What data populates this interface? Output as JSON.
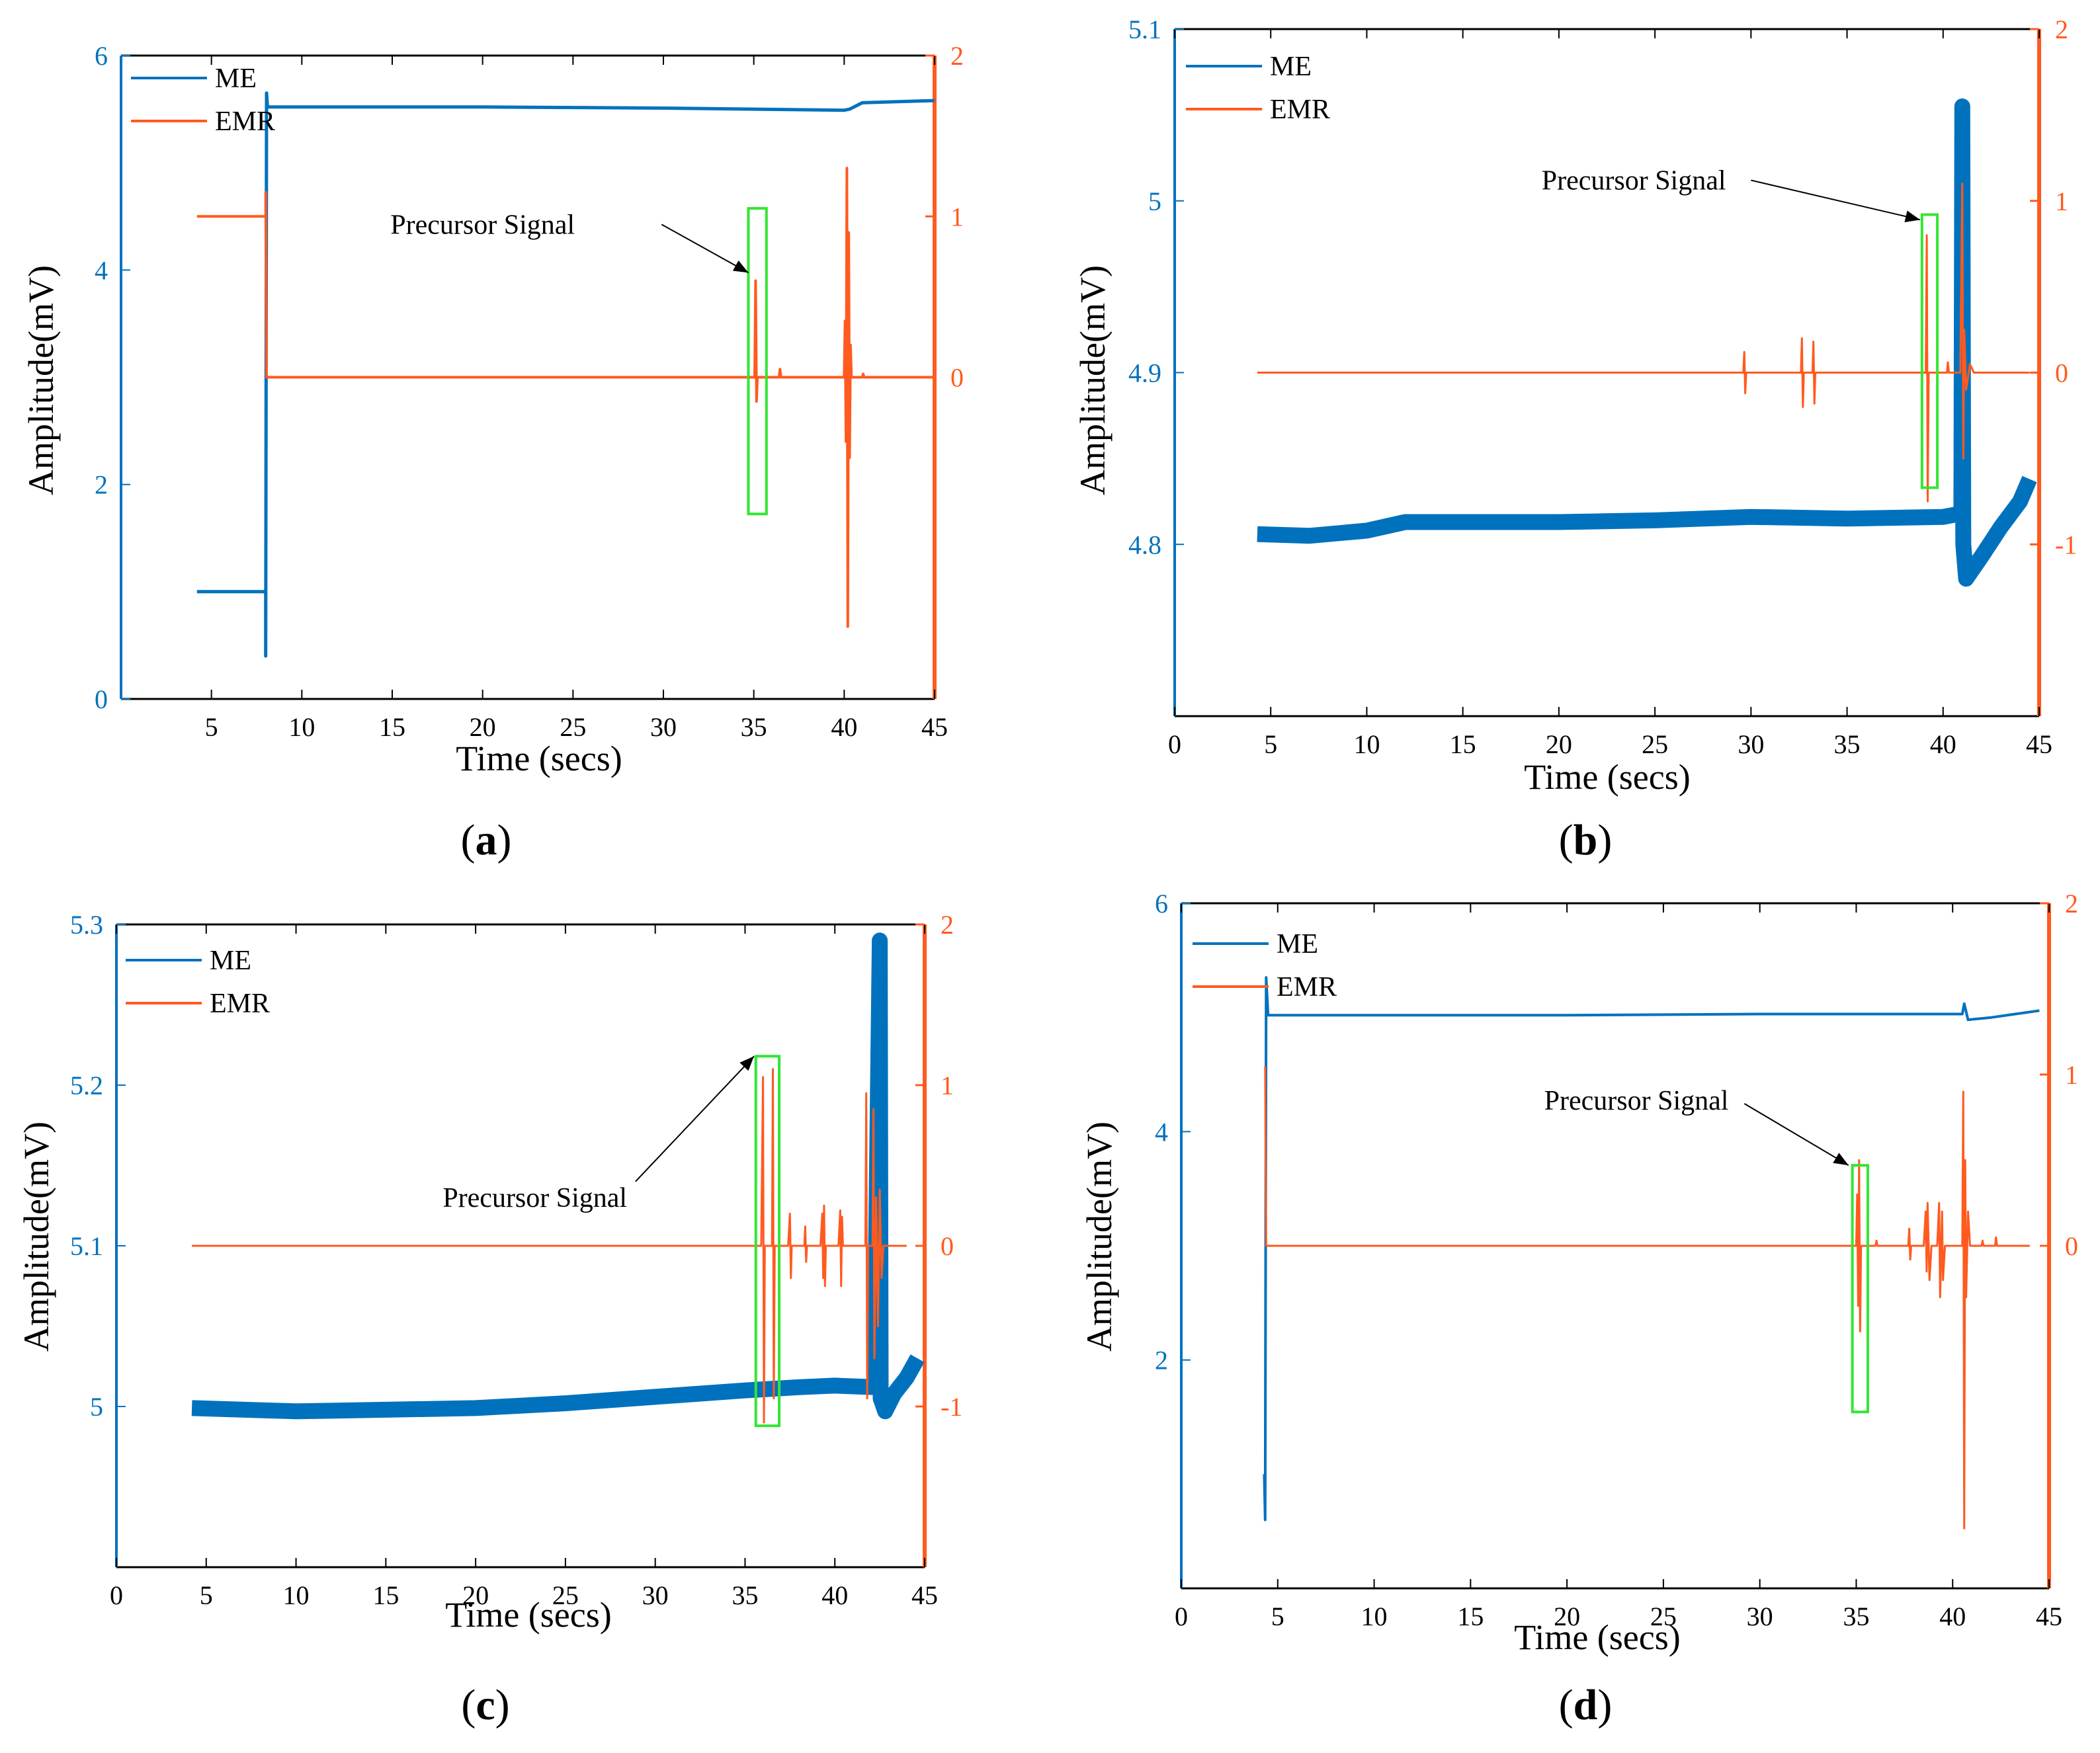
{
  "figure": {
    "colors": {
      "me": "#0072BD",
      "emr": "#FF5A1F",
      "box": "#33E633",
      "axis": "#000000"
    },
    "shared": {
      "xlabel": "Time (secs)",
      "ylabel": "Amplitude(mV)",
      "annotation": "Precursor Signal"
    }
  },
  "chart_data": [
    {
      "id": "a",
      "type": "line",
      "caption_letter": "a",
      "xlim": [
        0,
        45
      ],
      "xticks": [
        5,
        10,
        15,
        20,
        25,
        30,
        35,
        40,
        45
      ],
      "x_zero_label": false,
      "ylim_left": [
        0,
        6
      ],
      "yticks_left": [
        "0",
        "2",
        "4",
        "6"
      ],
      "ylim_right": [
        -2,
        2
      ],
      "yticks_right": [
        "0",
        "1",
        "2"
      ],
      "yticks_right_vals": [
        0,
        1,
        2
      ],
      "xlabel": "Time (secs)",
      "ylabel": "Amplitude(mV)",
      "legend": [
        {
          "name": "ME",
          "series": "ME"
        },
        {
          "name": "EMR",
          "series": "EMR"
        }
      ],
      "series": [
        {
          "name": "ME",
          "axis": "left",
          "width": 5,
          "points": [
            [
              4.2,
              1
            ],
            [
              8,
              1
            ],
            [
              8,
              0.4
            ],
            [
              8.05,
              5.65
            ],
            [
              8.1,
              5.52
            ],
            [
              20,
              5.52
            ],
            [
              30,
              5.51
            ],
            [
              40,
              5.49
            ],
            [
              40.3,
              5.5
            ],
            [
              41,
              5.56
            ],
            [
              45,
              5.58
            ]
          ]
        },
        {
          "name": "EMR",
          "axis": "right",
          "width": 4,
          "points": [
            [
              4.2,
              1
            ],
            [
              8,
              1
            ],
            [
              8,
              1.15
            ],
            [
              8.05,
              0
            ],
            [
              35,
              0
            ],
            [
              35.05,
              0
            ],
            [
              35.1,
              0.6
            ],
            [
              35.15,
              -0.15
            ],
            [
              35.2,
              0
            ],
            [
              36.4,
              0
            ],
            [
              36.45,
              0.05
            ],
            [
              36.5,
              0
            ],
            [
              40,
              0
            ],
            [
              40.05,
              0.35
            ],
            [
              40.1,
              -0.4
            ],
            [
              40.15,
              1.3
            ],
            [
              40.2,
              -1.55
            ],
            [
              40.25,
              0.9
            ],
            [
              40.3,
              -0.5
            ],
            [
              40.35,
              0.2
            ],
            [
              40.4,
              0
            ],
            [
              41,
              0
            ],
            [
              41.05,
              0.02
            ],
            [
              41.1,
              0
            ],
            [
              45,
              0
            ]
          ]
        }
      ],
      "box": {
        "x0": 34.7,
        "x1": 35.7,
        "y0": -0.85,
        "y1": 1.05
      },
      "annotation": {
        "text": "Precursor Signal",
        "text_x": 20,
        "text_y": 0.95,
        "arrow_from": [
          29.9,
          0.95
        ],
        "arrow_to": [
          34.7,
          0.65
        ]
      }
    },
    {
      "id": "b",
      "type": "line",
      "caption_letter": "b",
      "xlim": [
        0,
        45
      ],
      "xticks": [
        0,
        5,
        10,
        15,
        20,
        25,
        30,
        35,
        40,
        45
      ],
      "x_zero_label": true,
      "ylim_left": [
        4.7,
        5.1
      ],
      "yticks_left": [
        "4.8",
        "4.9",
        "5",
        "5.1"
      ],
      "yticks_left_vals": [
        4.8,
        4.9,
        5,
        5.1
      ],
      "ylim_right": [
        -2,
        2
      ],
      "yticks_right": [
        "-1",
        "0",
        "1",
        "2"
      ],
      "yticks_right_vals": [
        -1,
        0,
        1,
        2
      ],
      "xlabel": "Time (secs)",
      "ylabel": "Amplitude(mV)",
      "legend": [
        {
          "name": "ME",
          "series": "ME"
        },
        {
          "name": "EMR",
          "series": "EMR"
        }
      ],
      "series": [
        {
          "name": "ME",
          "axis": "left",
          "width": 24,
          "points": [
            [
              4.3,
              4.806
            ],
            [
              7,
              4.805
            ],
            [
              10,
              4.808
            ],
            [
              12,
              4.813
            ],
            [
              15,
              4.813
            ],
            [
              20,
              4.813
            ],
            [
              25,
              4.814
            ],
            [
              30,
              4.816
            ],
            [
              35,
              4.815
            ],
            [
              40,
              4.816
            ],
            [
              40.95,
              4.818
            ],
            [
              41,
              5.055
            ],
            [
              41.05,
              4.8
            ],
            [
              41.2,
              4.78
            ],
            [
              42,
              4.793
            ],
            [
              43,
              4.81
            ],
            [
              44,
              4.825
            ],
            [
              44.5,
              4.838
            ]
          ]
        },
        {
          "name": "EMR",
          "axis": "right",
          "width": 3,
          "points": [
            [
              4.3,
              0
            ],
            [
              29.6,
              0
            ],
            [
              29.65,
              0.12
            ],
            [
              29.7,
              -0.12
            ],
            [
              29.75,
              0
            ],
            [
              32.6,
              0
            ],
            [
              32.65,
              0.2
            ],
            [
              32.7,
              -0.2
            ],
            [
              32.75,
              0
            ],
            [
              33.2,
              0
            ],
            [
              33.25,
              0.18
            ],
            [
              33.3,
              -0.18
            ],
            [
              33.35,
              0
            ],
            [
              39.1,
              0
            ],
            [
              39.15,
              0.8
            ],
            [
              39.2,
              -0.75
            ],
            [
              39.25,
              0
            ],
            [
              40.2,
              0
            ],
            [
              40.25,
              0.06
            ],
            [
              40.3,
              0
            ],
            [
              40.9,
              0
            ],
            [
              41,
              1.1
            ],
            [
              41.05,
              -0.5
            ],
            [
              41.1,
              0.25
            ],
            [
              41.2,
              -0.1
            ],
            [
              41.4,
              0.05
            ],
            [
              41.6,
              0
            ],
            [
              44.5,
              0
            ]
          ]
        }
      ],
      "box": {
        "x0": 38.9,
        "x1": 39.7,
        "y0": -0.67,
        "y1": 0.92
      },
      "annotation": {
        "text": "Precursor Signal",
        "text_x": 23.9,
        "text_y": 1.12,
        "arrow_from": [
          30,
          1.12
        ],
        "arrow_to": [
          38.8,
          0.89
        ]
      }
    },
    {
      "id": "c",
      "type": "line",
      "caption_letter": "c",
      "xlim": [
        0,
        45
      ],
      "xticks": [
        0,
        5,
        10,
        15,
        20,
        25,
        30,
        35,
        40,
        45
      ],
      "x_zero_label": true,
      "ylim_left": [
        4.9,
        5.3
      ],
      "yticks_left": [
        "5",
        "5.1",
        "5.2",
        "5.3"
      ],
      "yticks_left_vals": [
        5,
        5.1,
        5.2,
        5.3
      ],
      "ylim_right": [
        -2,
        2
      ],
      "yticks_right": [
        "-1",
        "0",
        "1",
        "2"
      ],
      "yticks_right_vals": [
        -1,
        0,
        1,
        2
      ],
      "xlabel": "Time (secs)",
      "ylabel": "Amplitude(mV)",
      "legend": [
        {
          "name": "ME",
          "series": "ME"
        },
        {
          "name": "EMR",
          "series": "EMR"
        }
      ],
      "series": [
        {
          "name": "ME",
          "axis": "left",
          "width": 24,
          "points": [
            [
              4.2,
              4.999
            ],
            [
              10,
              4.997
            ],
            [
              15,
              4.998
            ],
            [
              20,
              4.999
            ],
            [
              25,
              5.002
            ],
            [
              30,
              5.006
            ],
            [
              35,
              5.01
            ],
            [
              38,
              5.012
            ],
            [
              40,
              5.013
            ],
            [
              42.2,
              5.012
            ],
            [
              42.5,
              5.29
            ],
            [
              42.55,
              5.005
            ],
            [
              42.8,
              4.997
            ],
            [
              43.3,
              5.008
            ],
            [
              44,
              5.018
            ],
            [
              44.6,
              5.03
            ]
          ]
        },
        {
          "name": "EMR",
          "axis": "right",
          "width": 3,
          "points": [
            [
              4.2,
              0
            ],
            [
              35.9,
              0
            ],
            [
              36,
              1.05
            ],
            [
              36.05,
              -1.1
            ],
            [
              36.1,
              0
            ],
            [
              36.5,
              0
            ],
            [
              36.55,
              1.1
            ],
            [
              36.6,
              -0.95
            ],
            [
              36.65,
              0
            ],
            [
              37.4,
              0
            ],
            [
              37.5,
              0.2
            ],
            [
              37.55,
              -0.2
            ],
            [
              37.6,
              0
            ],
            [
              38.3,
              0
            ],
            [
              38.35,
              0.12
            ],
            [
              38.4,
              -0.1
            ],
            [
              38.45,
              0
            ],
            [
              39.2,
              0
            ],
            [
              39.3,
              0.2
            ],
            [
              39.35,
              -0.2
            ],
            [
              39.4,
              0.25
            ],
            [
              39.45,
              -0.25
            ],
            [
              39.5,
              0
            ],
            [
              40.2,
              0
            ],
            [
              40.3,
              0.22
            ],
            [
              40.35,
              -0.25
            ],
            [
              40.4,
              0.18
            ],
            [
              40.45,
              0
            ],
            [
              41.7,
              0
            ],
            [
              41.75,
              0.95
            ],
            [
              41.8,
              -0.95
            ],
            [
              41.85,
              0
            ],
            [
              42.1,
              0
            ],
            [
              42.15,
              0.85
            ],
            [
              42.2,
              -0.7
            ],
            [
              42.3,
              0.3
            ],
            [
              42.4,
              -0.5
            ],
            [
              42.5,
              0.35
            ],
            [
              42.6,
              -0.2
            ],
            [
              42.7,
              0
            ],
            [
              44,
              0
            ]
          ]
        }
      ],
      "box": {
        "x0": 35.6,
        "x1": 36.9,
        "y0": -1.12,
        "y1": 1.18
      },
      "annotation": {
        "text": "Precursor Signal",
        "text_x": 23.3,
        "text_y": 0.3,
        "arrow_from": [
          28.9,
          0.4
        ],
        "arrow_to": [
          35.5,
          1.18
        ]
      }
    },
    {
      "id": "d",
      "type": "line",
      "caption_letter": "d",
      "xlim": [
        0,
        45
      ],
      "xticks": [
        0,
        5,
        10,
        15,
        20,
        25,
        30,
        35,
        40,
        45
      ],
      "x_zero_label": true,
      "ylim_left": [
        0,
        6
      ],
      "yticks_left": [
        "2",
        "4",
        "6"
      ],
      "yticks_left_vals": [
        2,
        4,
        6
      ],
      "ylim_right": [
        -2,
        2
      ],
      "yticks_right": [
        "0",
        "1",
        "2"
      ],
      "yticks_right_vals": [
        0,
        1,
        2
      ],
      "xlabel": "Time (secs)",
      "ylabel": "Amplitude(mV)",
      "legend": [
        {
          "name": "ME",
          "series": "ME"
        },
        {
          "name": "EMR",
          "series": "EMR"
        }
      ],
      "series": [
        {
          "name": "ME",
          "axis": "left",
          "width": 4,
          "points": [
            [
              4.3,
              1
            ],
            [
              4.35,
              0.6
            ],
            [
              4.4,
              5.35
            ],
            [
              4.5,
              5.02
            ],
            [
              20,
              5.02
            ],
            [
              30,
              5.03
            ],
            [
              40,
              5.03
            ],
            [
              40.5,
              5.03
            ],
            [
              40.6,
              5.12
            ],
            [
              40.8,
              4.98
            ],
            [
              42,
              5.0
            ],
            [
              44.5,
              5.06
            ]
          ]
        },
        {
          "name": "EMR",
          "axis": "right",
          "width": 3,
          "points": [
            [
              4.35,
              1.05
            ],
            [
              4.4,
              0
            ],
            [
              35,
              0
            ],
            [
              35.05,
              0.3
            ],
            [
              35.1,
              -0.35
            ],
            [
              35.15,
              0.5
            ],
            [
              35.2,
              -0.5
            ],
            [
              35.25,
              0
            ],
            [
              36,
              0
            ],
            [
              36.05,
              0.03
            ],
            [
              36.1,
              0
            ],
            [
              37.7,
              0
            ],
            [
              37.75,
              0.1
            ],
            [
              37.8,
              -0.08
            ],
            [
              37.85,
              0
            ],
            [
              38.5,
              0
            ],
            [
              38.6,
              0.2
            ],
            [
              38.65,
              -0.15
            ],
            [
              38.7,
              0.25
            ],
            [
              38.8,
              -0.2
            ],
            [
              38.9,
              0
            ],
            [
              39.2,
              0
            ],
            [
              39.3,
              0.25
            ],
            [
              39.35,
              -0.3
            ],
            [
              39.45,
              0.2
            ],
            [
              39.5,
              -0.2
            ],
            [
              39.6,
              0
            ],
            [
              40.5,
              0
            ],
            [
              40.55,
              0.9
            ],
            [
              40.6,
              -1.65
            ],
            [
              40.65,
              0.5
            ],
            [
              40.7,
              -0.3
            ],
            [
              40.8,
              0.2
            ],
            [
              40.9,
              0
            ],
            [
              41.5,
              0
            ],
            [
              41.55,
              0.03
            ],
            [
              41.6,
              0
            ],
            [
              42.2,
              0
            ],
            [
              42.25,
              0.05
            ],
            [
              42.3,
              0
            ],
            [
              44,
              0
            ]
          ]
        }
      ],
      "box": {
        "x0": 34.8,
        "x1": 35.6,
        "y0": -0.97,
        "y1": 0.47
      },
      "annotation": {
        "text": "Precursor Signal",
        "text_x": 23.6,
        "text_y": 0.85,
        "arrow_from": [
          29.2,
          0.83
        ],
        "arrow_to": [
          34.6,
          0.47
        ]
      }
    }
  ]
}
